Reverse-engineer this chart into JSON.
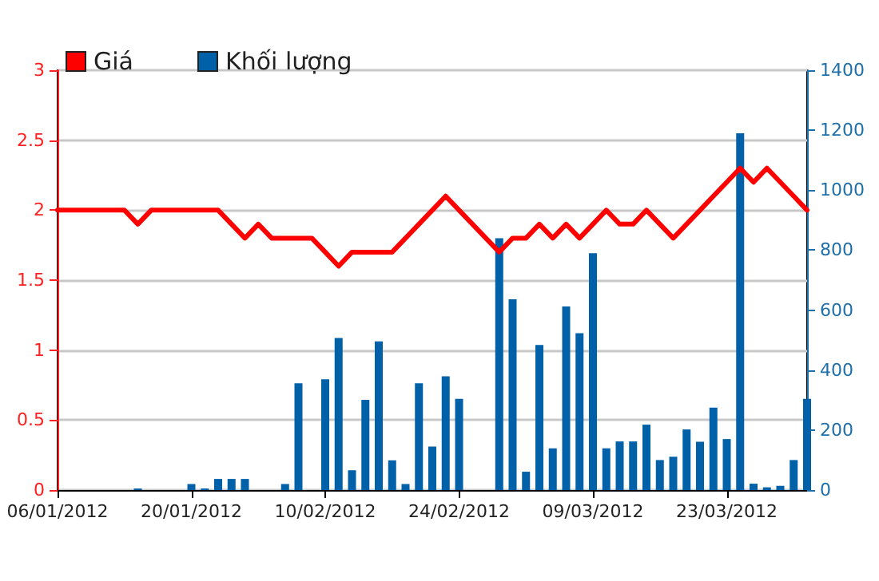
{
  "chart_data": {
    "type": "line",
    "categories": [
      "06/01/2012",
      null,
      null,
      null,
      null,
      null,
      null,
      null,
      null,
      null,
      "20/01/2012",
      null,
      null,
      null,
      null,
      null,
      null,
      null,
      null,
      null,
      "10/02/2012",
      null,
      null,
      null,
      null,
      null,
      null,
      null,
      null,
      null,
      "24/02/2012",
      null,
      null,
      null,
      null,
      null,
      null,
      null,
      null,
      null,
      "09/03/2012",
      null,
      null,
      null,
      null,
      null,
      null,
      null,
      null,
      null,
      "23/03/2012",
      null,
      null,
      null,
      null,
      null,
      null
    ],
    "series": [
      {
        "name": "Giá",
        "color": "#ff0000",
        "values": [
          2.0,
          2.0,
          2.0,
          2.0,
          2.0,
          2.0,
          1.9,
          2.0,
          2.0,
          2.0,
          2.0,
          2.0,
          2.0,
          1.9,
          1.8,
          1.9,
          1.8,
          1.8,
          1.8,
          1.8,
          1.7,
          1.6,
          1.7,
          1.7,
          1.7,
          1.7,
          1.8,
          1.9,
          2.0,
          2.1,
          2.0,
          1.9,
          1.8,
          1.7,
          1.8,
          1.8,
          1.9,
          1.8,
          1.9,
          1.8,
          1.9,
          2.0,
          1.9,
          1.9,
          2.0,
          1.9,
          1.8,
          1.9,
          2.0,
          2.1,
          2.2,
          2.3,
          2.2,
          2.3,
          2.2,
          2.1,
          2.0
        ]
      },
      {
        "name": "Khối lượng",
        "type": "bar",
        "axis": "y2",
        "color": "#0060a8",
        "values": [
          0,
          0,
          0,
          0,
          0,
          0,
          5,
          0,
          0,
          0,
          20,
          5,
          37,
          37,
          37,
          0,
          0,
          20,
          356,
          0,
          369,
          507,
          66,
          301,
          496,
          99,
          20,
          356,
          145,
          379,
          304,
          0,
          0,
          840,
          636,
          61,
          484,
          139,
          612,
          523,
          790,
          139,
          162,
          162,
          218,
          100,
          111,
          202,
          161,
          275,
          170,
          1190,
          21,
          9,
          14,
          100,
          304
        ]
      }
    ],
    "ylim": [
      0,
      3
    ],
    "yticks": [
      0,
      0.5,
      1,
      1.5,
      2,
      2.5,
      3
    ],
    "y2lim": [
      0,
      1400
    ],
    "y2ticks": [
      0,
      200,
      400,
      600,
      800,
      1000,
      1200,
      1400
    ],
    "grid": "y",
    "legend": "top left",
    "marker": "none",
    "line_style": "solid"
  }
}
